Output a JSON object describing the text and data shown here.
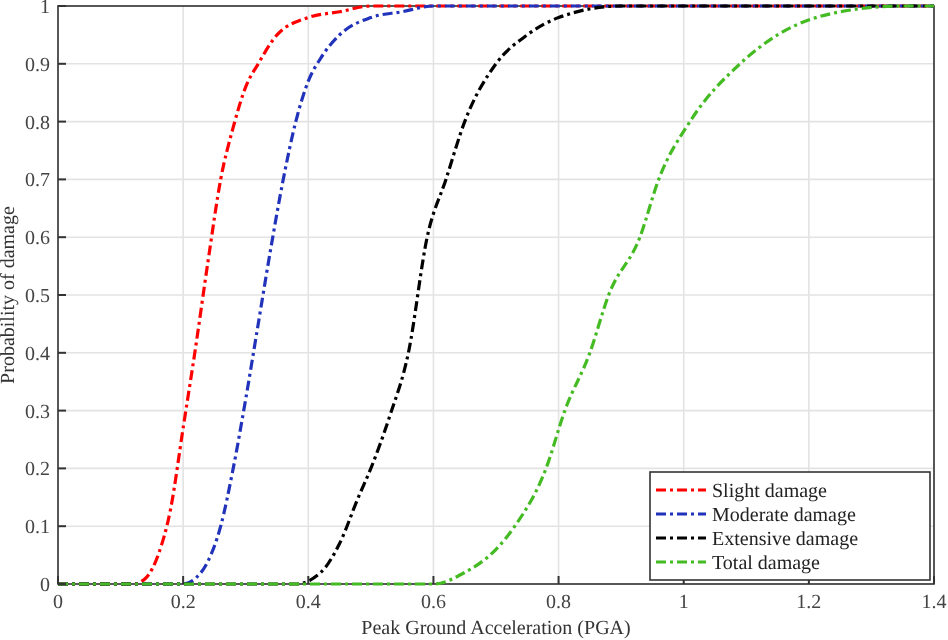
{
  "chart_data": {
    "type": "line",
    "xlabel": "Peak Ground Acceleration (PGA)",
    "ylabel": "Probability of damage",
    "xlim": [
      0,
      1.4
    ],
    "ylim": [
      0,
      1
    ],
    "xticks": [
      0,
      0.2,
      0.4,
      0.6,
      0.8,
      1,
      1.2,
      1.4
    ],
    "yticks": [
      0,
      0.1,
      0.2,
      0.3,
      0.4,
      0.5,
      0.6,
      0.7,
      0.8,
      0.9,
      1
    ],
    "grid": true,
    "legend": "bottom right",
    "line_style": "dashed",
    "series": [
      {
        "name": "Slight damage",
        "color": "#ff0000",
        "x": [
          0,
          0.12,
          0.14,
          0.16,
          0.18,
          0.2,
          0.22,
          0.24,
          0.26,
          0.28,
          0.3,
          0.32,
          0.35,
          0.4,
          0.45,
          0.5,
          1.4
        ],
        "values": [
          0,
          0,
          0.01,
          0.05,
          0.13,
          0.27,
          0.41,
          0.56,
          0.7,
          0.79,
          0.86,
          0.9,
          0.95,
          0.98,
          0.99,
          1,
          1
        ]
      },
      {
        "name": "Moderate damage",
        "color": "#2233bb",
        "x": [
          0,
          0.2,
          0.22,
          0.24,
          0.26,
          0.28,
          0.3,
          0.32,
          0.34,
          0.36,
          0.38,
          0.4,
          0.42,
          0.45,
          0.5,
          0.55,
          0.6,
          1.4
        ],
        "values": [
          0,
          0,
          0.01,
          0.04,
          0.1,
          0.2,
          0.32,
          0.45,
          0.58,
          0.7,
          0.8,
          0.87,
          0.91,
          0.95,
          0.98,
          0.99,
          1,
          1
        ]
      },
      {
        "name": "Extensive damage",
        "color": "#000000",
        "x": [
          0,
          0.38,
          0.42,
          0.45,
          0.48,
          0.5,
          0.53,
          0.56,
          0.59,
          0.62,
          0.65,
          0.7,
          0.75,
          0.8,
          0.9,
          1.4
        ],
        "values": [
          0,
          0,
          0.02,
          0.07,
          0.15,
          0.2,
          0.29,
          0.4,
          0.6,
          0.7,
          0.8,
          0.9,
          0.95,
          0.98,
          1,
          1
        ]
      },
      {
        "name": "Total damage",
        "color": "#44bb22",
        "x": [
          0,
          0.6,
          0.65,
          0.7,
          0.73,
          0.78,
          0.81,
          0.85,
          0.88,
          0.93,
          0.96,
          1.01,
          1.09,
          1.15,
          1.25,
          1.35,
          1.4
        ],
        "values": [
          0,
          0,
          0.02,
          0.06,
          0.1,
          0.2,
          0.3,
          0.4,
          0.5,
          0.6,
          0.7,
          0.8,
          0.9,
          0.95,
          0.99,
          1,
          1
        ]
      }
    ]
  }
}
